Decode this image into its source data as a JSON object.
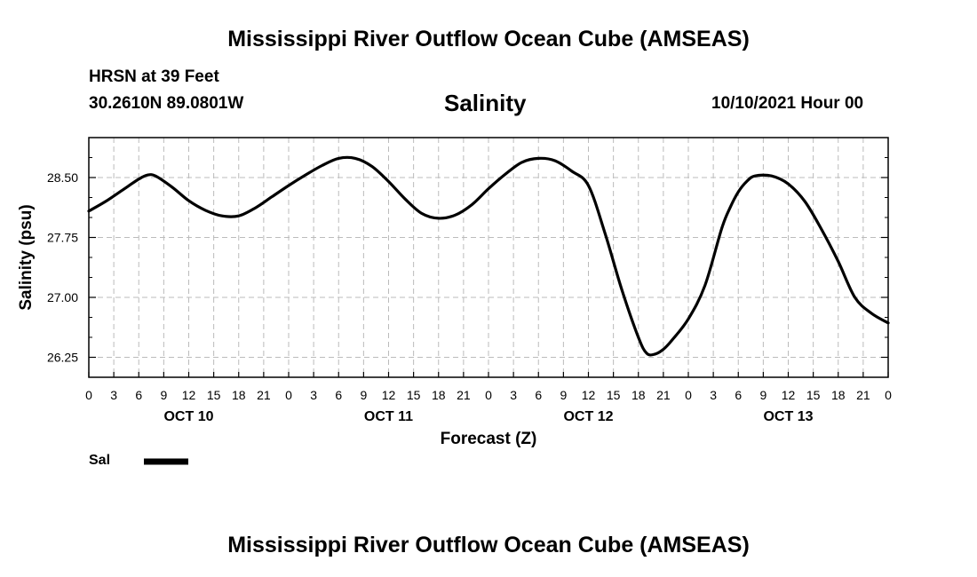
{
  "header": {
    "title": "Mississippi River Outflow Ocean Cube (AMSEAS)",
    "station": "HRSN at 39 Feet",
    "coords": "30.2610N  89.0801W",
    "datetime": "10/10/2021 Hour 00"
  },
  "footer": {
    "title": "Mississippi River Outflow Ocean Cube (AMSEAS)"
  },
  "chart_data": {
    "type": "line",
    "title": "Salinity",
    "xlabel": "Forecast (Z)",
    "ylabel": "Salinity (psu)",
    "ylim": [
      26.0,
      29.0
    ],
    "xlim": [
      0,
      96
    ],
    "grid": true,
    "y_ticks": [
      26.25,
      27.0,
      27.75,
      28.5
    ],
    "y_tick_labels": [
      "26.25",
      "27.00",
      "27.75",
      "28.50"
    ],
    "x_ticks": [
      0,
      3,
      6,
      9,
      12,
      15,
      18,
      21,
      24,
      27,
      30,
      33,
      36,
      39,
      42,
      45,
      48,
      51,
      54,
      57,
      60,
      63,
      66,
      69,
      72,
      75,
      78,
      81,
      84,
      87,
      90,
      93,
      96
    ],
    "x_tick_labels": [
      "0",
      "3",
      "6",
      "9",
      "12",
      "15",
      "18",
      "21",
      "0",
      "3",
      "6",
      "9",
      "12",
      "15",
      "18",
      "21",
      "0",
      "3",
      "6",
      "9",
      "12",
      "15",
      "18",
      "21",
      "0",
      "3",
      "6",
      "9",
      "12",
      "15",
      "18",
      "21",
      "0"
    ],
    "day_labels": [
      {
        "label": "OCT 10",
        "hour": 12
      },
      {
        "label": "OCT 11",
        "hour": 36
      },
      {
        "label": "OCT 12",
        "hour": 60
      },
      {
        "label": "OCT 13",
        "hour": 84
      }
    ],
    "legend": [
      {
        "name": "Sal",
        "color": "#000000"
      }
    ],
    "series": [
      {
        "name": "Sal",
        "color": "#000000",
        "x": [
          0,
          2,
          4,
          6,
          7,
          8,
          10,
          12,
          14,
          16,
          18,
          20,
          22,
          24,
          26,
          28,
          30,
          32,
          34,
          36,
          38,
          40,
          42,
          44,
          46,
          48,
          50,
          52,
          54,
          56,
          58,
          60,
          62,
          64,
          66,
          67,
          68,
          69,
          70,
          72,
          74,
          76,
          77,
          78,
          79,
          80,
          82,
          84,
          86,
          88,
          90,
          92,
          94,
          96
        ],
        "values": [
          28.08,
          28.2,
          28.34,
          28.48,
          28.53,
          28.52,
          28.38,
          28.21,
          28.09,
          28.02,
          28.02,
          28.12,
          28.26,
          28.4,
          28.53,
          28.65,
          28.74,
          28.74,
          28.64,
          28.45,
          28.23,
          28.05,
          27.99,
          28.03,
          28.16,
          28.36,
          28.54,
          28.69,
          28.74,
          28.71,
          28.58,
          28.4,
          27.8,
          27.1,
          26.5,
          26.3,
          26.29,
          26.35,
          26.46,
          26.73,
          27.15,
          27.86,
          28.12,
          28.32,
          28.45,
          28.52,
          28.52,
          28.42,
          28.2,
          27.85,
          27.45,
          27.0,
          26.8,
          26.68
        ]
      }
    ]
  }
}
